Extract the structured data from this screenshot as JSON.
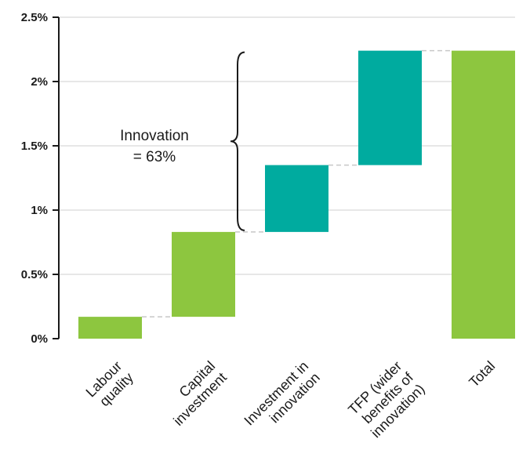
{
  "chart_data": {
    "type": "bar",
    "subtype": "waterfall",
    "title": "",
    "xlabel": "",
    "ylabel": "",
    "ylim": [
      0,
      2.5
    ],
    "yticks": [
      0,
      0.5,
      1,
      1.5,
      2,
      2.5
    ],
    "ytick_labels": [
      "0%",
      "0.5%",
      "1%",
      "1.5%",
      "2%",
      "2.5%"
    ],
    "grid": true,
    "categories": [
      [
        "Labour",
        "quality"
      ],
      [
        "Capital",
        "investment"
      ],
      [
        "Investment in",
        "innovation"
      ],
      [
        "TFP (wider",
        "benefits of",
        "innovation)"
      ],
      [
        "Total"
      ]
    ],
    "bars": [
      {
        "category": "Labour quality",
        "start": 0,
        "end": 0.17,
        "value": 0.17,
        "color": "#8dc63f"
      },
      {
        "category": "Capital investment",
        "start": 0.17,
        "end": 0.83,
        "value": 0.66,
        "color": "#8dc63f"
      },
      {
        "category": "Investment in innovation",
        "start": 0.83,
        "end": 1.35,
        "value": 0.52,
        "color": "#00ab9f"
      },
      {
        "category": "TFP (wider benefits of innovation)",
        "start": 1.35,
        "end": 2.24,
        "value": 0.89,
        "color": "#00ab9f"
      },
      {
        "category": "Total",
        "start": 0,
        "end": 2.24,
        "value": 2.24,
        "color": "#8dc63f"
      }
    ],
    "annotation": {
      "lines": [
        "Innovation",
        "= 63%"
      ],
      "brace_from": 0.83,
      "brace_to": 2.24
    },
    "colors": {
      "base": "#8dc63f",
      "innovation": "#00ab9f"
    }
  }
}
